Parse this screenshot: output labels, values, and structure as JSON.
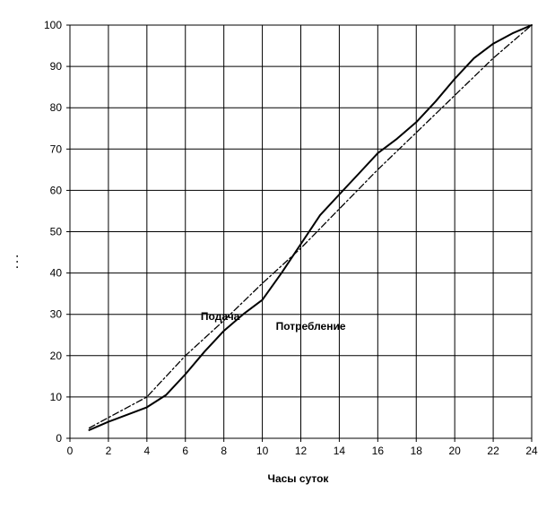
{
  "chart_data": {
    "type": "line",
    "title": "",
    "xlabel": "Часы суток",
    "ylabel": "",
    "xlim": [
      0,
      24
    ],
    "ylim": [
      0,
      100
    ],
    "x_ticks": [
      "0",
      "2",
      "4",
      "6",
      "8",
      "10",
      "12",
      "14",
      "16",
      "18",
      "20",
      "22",
      "24"
    ],
    "y_ticks": [
      "0",
      "10",
      "20",
      "30",
      "40",
      "50",
      "60",
      "70",
      "80",
      "90",
      "100"
    ],
    "grid": true,
    "colors": {
      "line": "#000000",
      "grid": "#000000",
      "background": "#ffffff"
    },
    "series": [
      {
        "name": "Подача",
        "style": "dash-dot",
        "points": [
          [
            1,
            2.5
          ],
          [
            2,
            5
          ],
          [
            4,
            10
          ],
          [
            6,
            20
          ],
          [
            8,
            28.5
          ],
          [
            10,
            37.5
          ],
          [
            12,
            46
          ],
          [
            14,
            55.5
          ],
          [
            16,
            65
          ],
          [
            18,
            74
          ],
          [
            20,
            83
          ],
          [
            22,
            92
          ],
          [
            24,
            100
          ]
        ]
      },
      {
        "name": "Потребление",
        "style": "solid",
        "points": [
          [
            1,
            2
          ],
          [
            2,
            4
          ],
          [
            4,
            7.5
          ],
          [
            5,
            10.5
          ],
          [
            6,
            15.5
          ],
          [
            7,
            21
          ],
          [
            8,
            26
          ],
          [
            9,
            30
          ],
          [
            10,
            33.5
          ],
          [
            11,
            40
          ],
          [
            12,
            47
          ],
          [
            13,
            54
          ],
          [
            14,
            59
          ],
          [
            15,
            64
          ],
          [
            16,
            69
          ],
          [
            17,
            72.5
          ],
          [
            18,
            76.5
          ],
          [
            19,
            81.5
          ],
          [
            20,
            87
          ],
          [
            21,
            92
          ],
          [
            22,
            95.5
          ],
          [
            23,
            98
          ],
          [
            24,
            100
          ]
        ]
      }
    ],
    "annotations": [
      {
        "text": "Подача",
        "x": 6.8,
        "y": 28.6
      },
      {
        "text": "Потребление",
        "x": 10.7,
        "y": 26.2
      }
    ]
  }
}
